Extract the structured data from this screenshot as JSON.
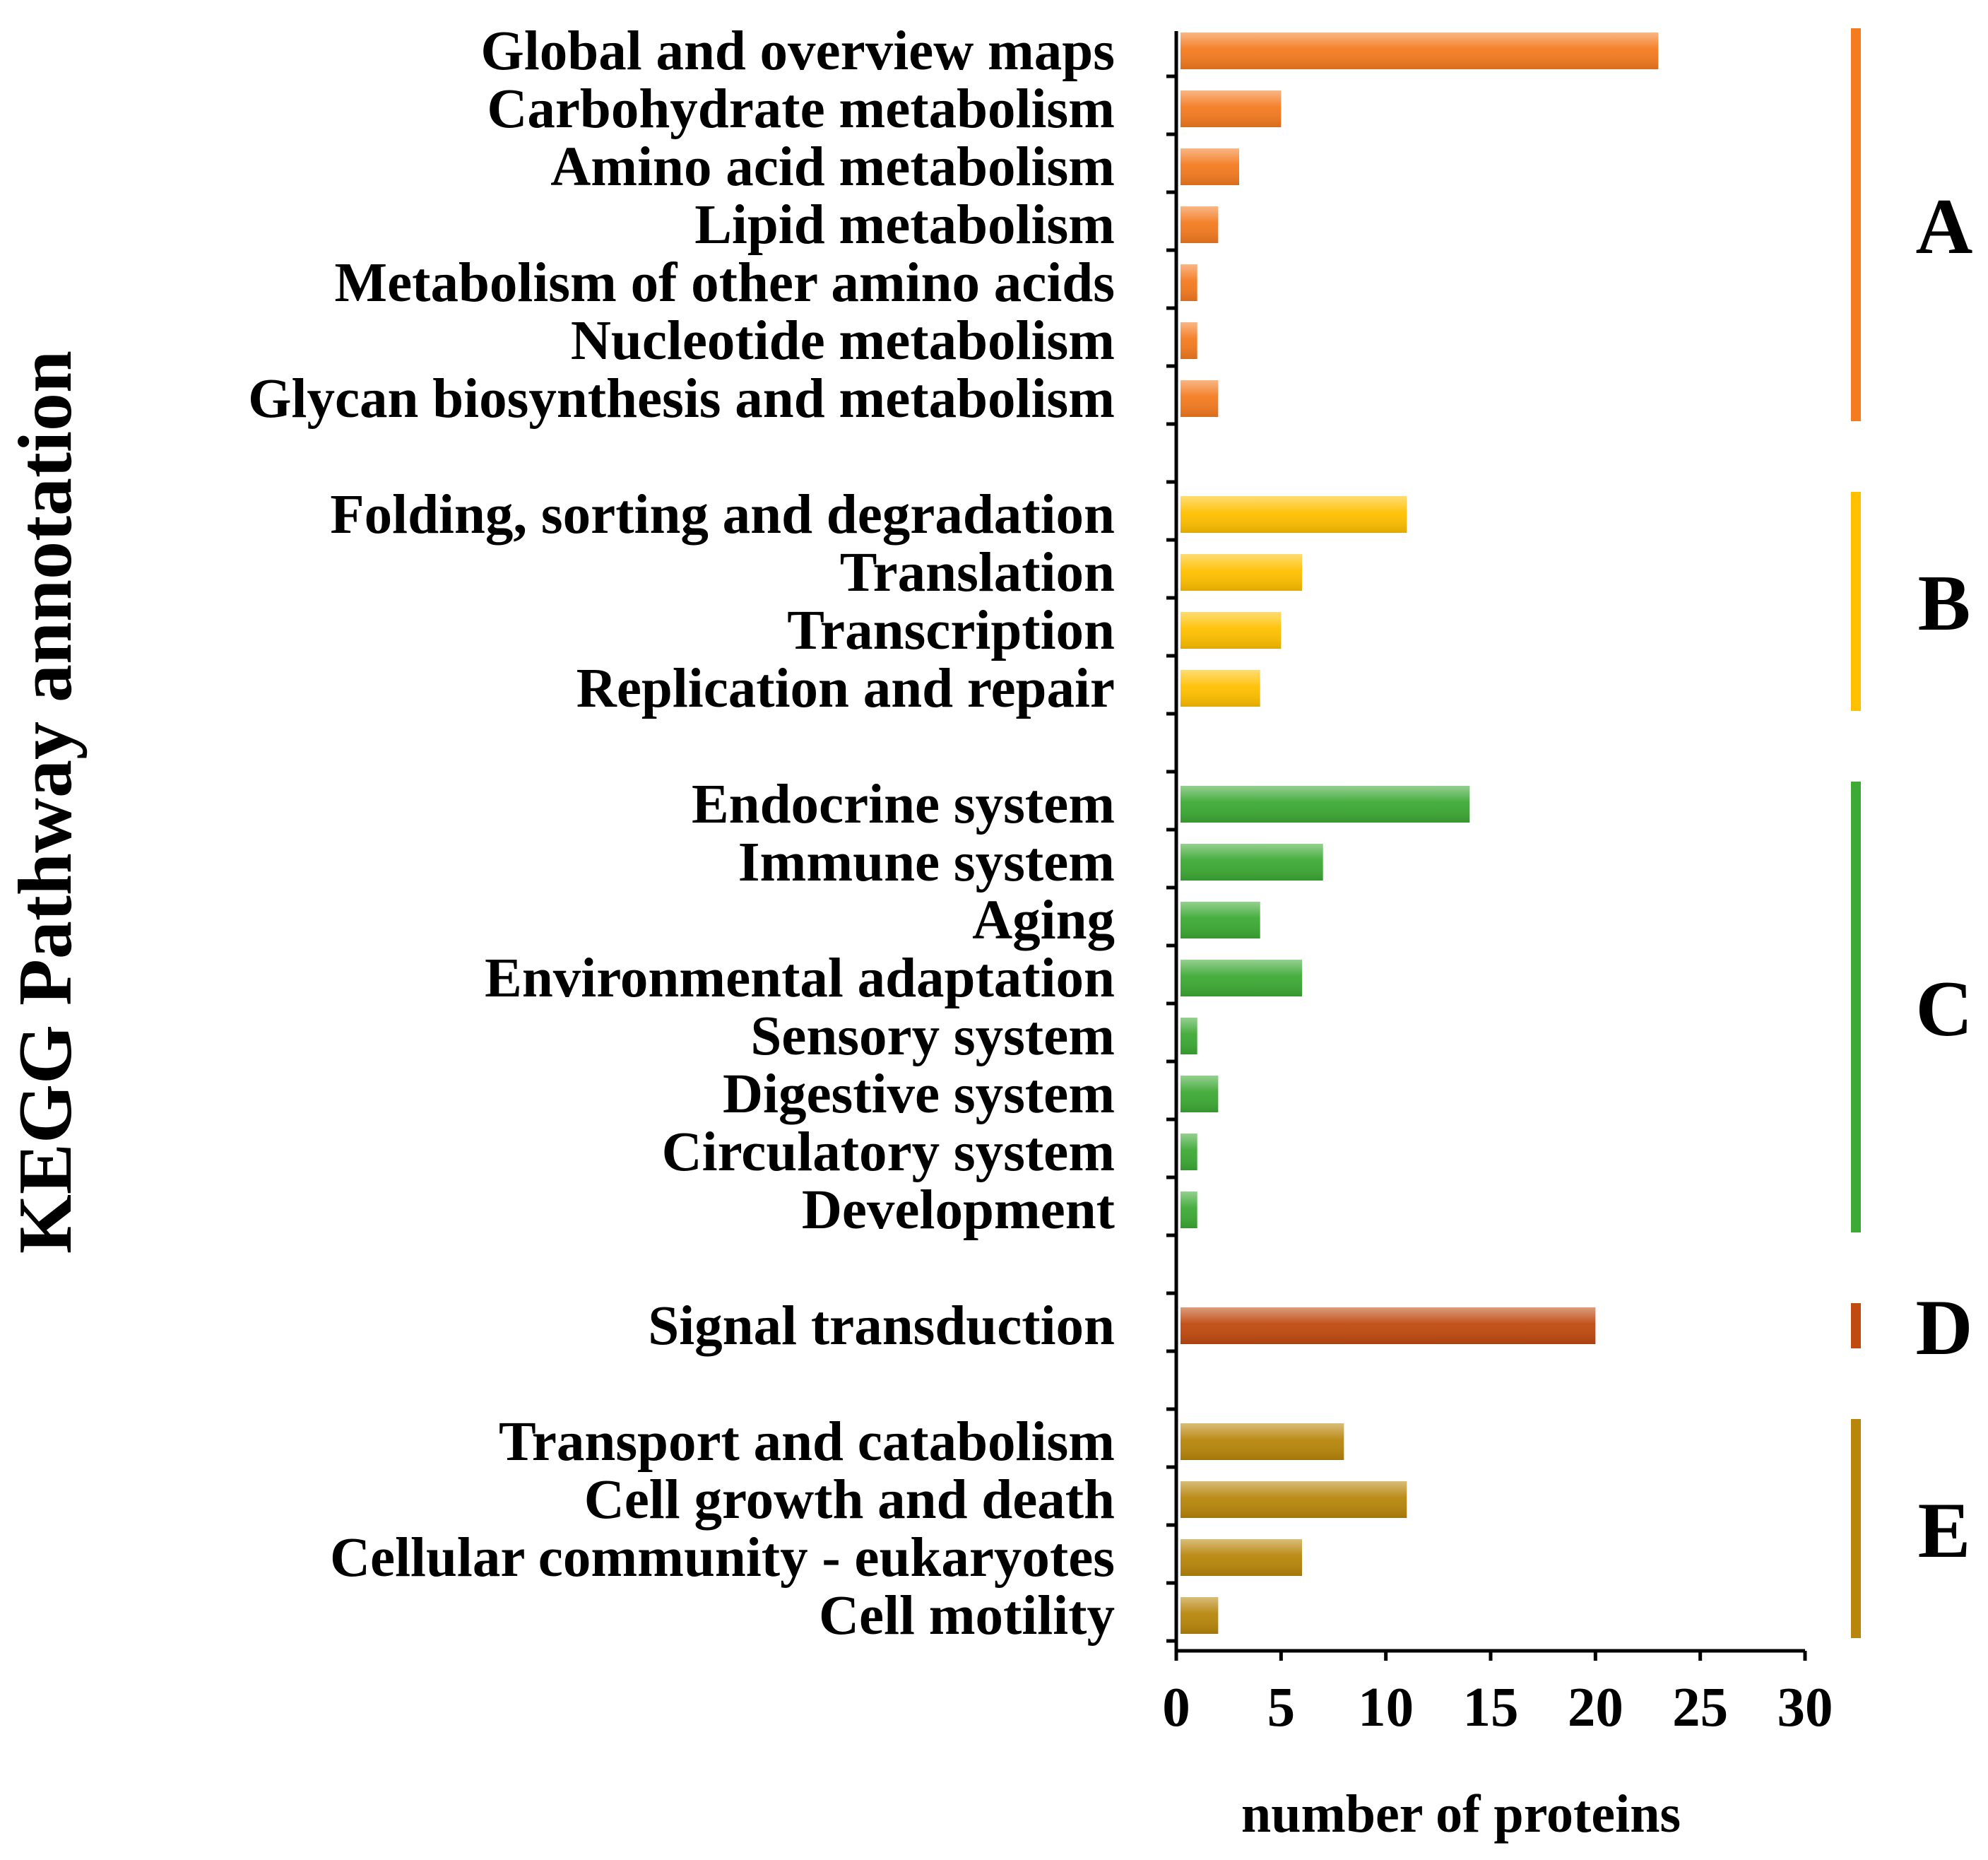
{
  "chart_data": {
    "type": "bar",
    "orientation": "horizontal",
    "ylabel": "KEGG Pathway annotation",
    "xlabel": "number of proteins",
    "xlim": [
      0,
      30
    ],
    "xticks": [
      "0",
      "5",
      "10",
      "15",
      "20",
      "25",
      "30"
    ],
    "grid": false,
    "groups": [
      {
        "label": "A",
        "color": "#F47B20",
        "categories": [
          "Global and overview maps",
          "Carbohydrate metabolism",
          "Amino acid metabolism",
          "Lipid metabolism",
          "Metabolism of other amino acids",
          "Nucleotide metabolism",
          "Glycan biosynthesis and metabolism"
        ],
        "values": [
          23,
          5,
          3,
          2,
          1,
          1,
          2
        ]
      },
      {
        "label": "B",
        "color": "#FFC000",
        "categories": [
          "Folding, sorting and degradation",
          "Translation",
          "Transcription",
          "Replication and repair"
        ],
        "values": [
          11,
          6,
          5,
          4
        ]
      },
      {
        "label": "C",
        "color": "#3DAA35",
        "categories": [
          "Endocrine system",
          "Immune system",
          "Aging",
          "Environmental adaptation",
          "Sensory system",
          "Digestive system",
          "Circulatory system",
          "Development"
        ],
        "values": [
          14,
          7,
          4,
          6,
          1,
          2,
          1,
          1
        ]
      },
      {
        "label": "D",
        "color": "#C04A10",
        "categories": [
          "Signal transduction"
        ],
        "values": [
          20
        ]
      },
      {
        "label": "E",
        "color": "#B8860B",
        "categories": [
          "Transport and catabolism",
          "Cell growth and death",
          "Cellular community - eukaryotes",
          "Cell motility"
        ],
        "values": [
          8,
          11,
          6,
          2
        ]
      }
    ]
  }
}
